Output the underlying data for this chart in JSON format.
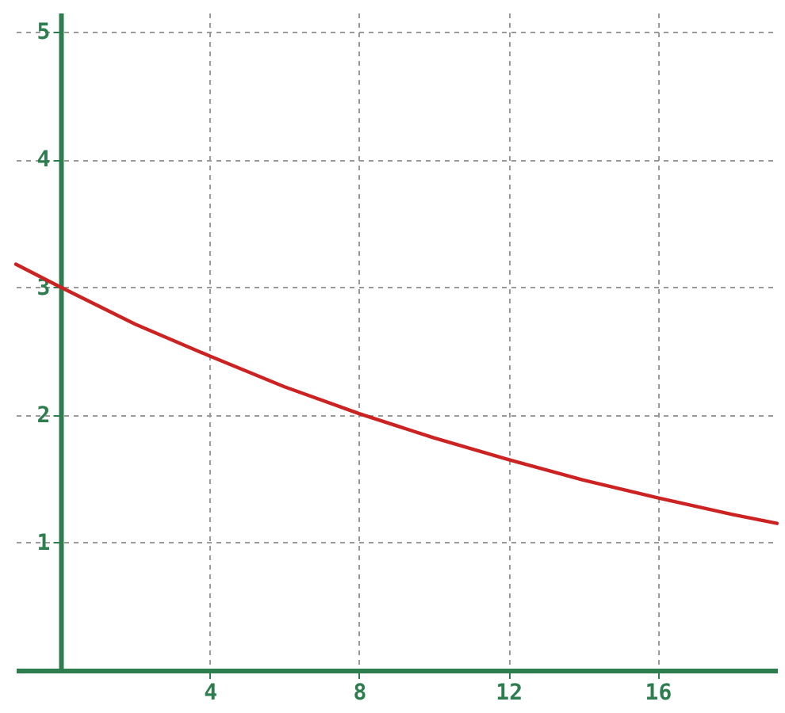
{
  "chart_data": {
    "type": "line",
    "x": [
      -1.2,
      0,
      2,
      4,
      6,
      8,
      10,
      12,
      14,
      16,
      18,
      19.2
    ],
    "series": [
      {
        "color": "#cc2222",
        "values": [
          3.18,
          3.0,
          2.71,
          2.46,
          2.22,
          2.01,
          1.82,
          1.65,
          1.49,
          1.35,
          1.22,
          1.15
        ]
      }
    ],
    "xlim": [
      -1.2,
      19.2
    ],
    "xticks": [
      4,
      8,
      12,
      16
    ],
    "ylim": [
      0,
      5.15
    ],
    "yticks": [
      1,
      2,
      3,
      4,
      5
    ],
    "grid": true
  }
}
